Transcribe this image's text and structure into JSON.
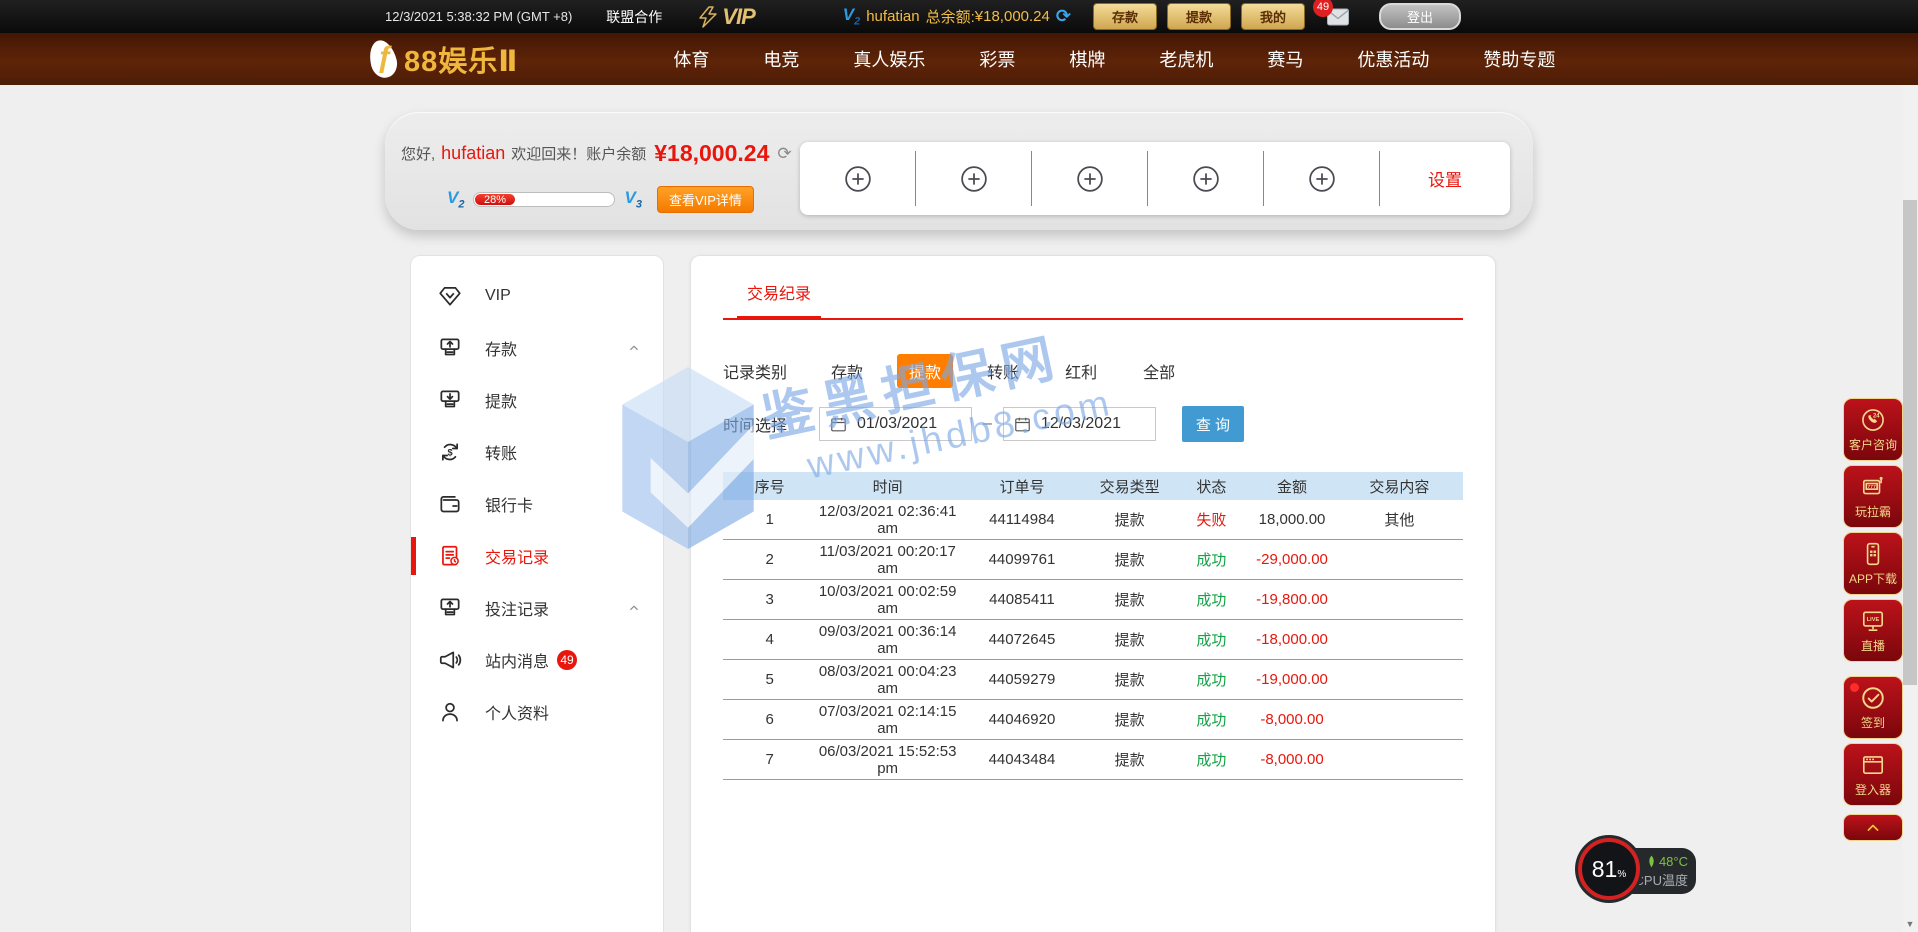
{
  "topbar": {
    "datetime": "12/3/2021 5:38:32 PM (GMT +8)",
    "alliance_link": "联盟合作",
    "vip_logo": "VIP",
    "vip_level": "V",
    "vip_level_sub": "2",
    "username": "hufatian",
    "balance_label": "总余额:",
    "balance": "¥18,000.24",
    "buttons": {
      "deposit": "存款",
      "withdraw": "提款",
      "mine": "我的",
      "logout": "登出"
    },
    "message_count": "49"
  },
  "nav": {
    "logo_f": "ƒ",
    "logo_text": "88娱乐Ⅱ",
    "items": [
      "体育",
      "电竞",
      "真人娱乐",
      "彩票",
      "棋牌",
      "老虎机",
      "赛马",
      "优惠活动",
      "赞助专题"
    ]
  },
  "banner": {
    "greeting_prefix": "您好,",
    "username": "hufatian",
    "greeting_mid": "欢迎回来！账户余额",
    "balance": "¥18,000.24",
    "vip_current": "V",
    "vip_current_sub": "2",
    "vip_next": "V",
    "vip_next_sub": "3",
    "progress": "28%",
    "vip_detail_button": "查看VIP详情",
    "settings": "设置",
    "quick_slots": 5
  },
  "sidebar": {
    "items": [
      {
        "label": "VIP",
        "icon": "vip-icon"
      },
      {
        "label": "存款",
        "icon": "deposit-icon",
        "chevron": true
      },
      {
        "label": "提款",
        "icon": "withdraw-icon"
      },
      {
        "label": "转账",
        "icon": "transfer-icon"
      },
      {
        "label": "银行卡",
        "icon": "bankcard-icon"
      },
      {
        "label": "交易记录",
        "icon": "records-icon",
        "active": true
      },
      {
        "label": "投注记录",
        "icon": "bets-icon",
        "chevron": true
      },
      {
        "label": "站内消息",
        "icon": "messages-icon",
        "badge": "49"
      },
      {
        "label": "个人资料",
        "icon": "profile-icon"
      }
    ]
  },
  "main": {
    "tab": "交易纪录",
    "filter_label": "记录类别",
    "filters": [
      {
        "label": "存款"
      },
      {
        "label": "提款",
        "active": true
      },
      {
        "label": "转账"
      },
      {
        "label": "红利"
      },
      {
        "label": "全部"
      }
    ],
    "date_label": "时间选择",
    "date_from": "01/03/2021",
    "date_separator": "–",
    "date_to": "12/03/2021",
    "search_button": "查 询",
    "table": {
      "headers": [
        "序号",
        "时间",
        "订单号",
        "交易类型",
        "状态",
        "金额",
        "交易内容"
      ],
      "rows": [
        {
          "no": "1",
          "time": "12/03/2021 02:36:41 am",
          "order": "44114984",
          "type": "提款",
          "status": "失败",
          "status_kind": "fail",
          "amount": "18,000.00",
          "amount_kind": "plain",
          "content": "其他"
        },
        {
          "no": "2",
          "time": "11/03/2021 00:20:17 am",
          "order": "44099761",
          "type": "提款",
          "status": "成功",
          "status_kind": "success",
          "amount": "-29,000.00",
          "amount_kind": "negative",
          "content": ""
        },
        {
          "no": "3",
          "time": "10/03/2021 00:02:59 am",
          "order": "44085411",
          "type": "提款",
          "status": "成功",
          "status_kind": "success",
          "amount": "-19,800.00",
          "amount_kind": "negative",
          "content": ""
        },
        {
          "no": "4",
          "time": "09/03/2021 00:36:14 am",
          "order": "44072645",
          "type": "提款",
          "status": "成功",
          "status_kind": "success",
          "amount": "-18,000.00",
          "amount_kind": "negative",
          "content": ""
        },
        {
          "no": "5",
          "time": "08/03/2021 00:04:23 am",
          "order": "44059279",
          "type": "提款",
          "status": "成功",
          "status_kind": "success",
          "amount": "-19,000.00",
          "amount_kind": "negative",
          "content": ""
        },
        {
          "no": "6",
          "time": "07/03/2021 02:14:15 am",
          "order": "44046920",
          "type": "提款",
          "status": "成功",
          "status_kind": "success",
          "amount": "-8,000.00",
          "amount_kind": "negative",
          "content": ""
        },
        {
          "no": "7",
          "time": "06/03/2021 15:52:53 pm",
          "order": "44043484",
          "type": "提款",
          "status": "成功",
          "status_kind": "success",
          "amount": "-8,000.00",
          "amount_kind": "negative",
          "content": ""
        }
      ]
    }
  },
  "watermark": {
    "line1": "鉴黑担保网",
    "line2": "www.jhdb8.com"
  },
  "floating": {
    "items": [
      {
        "label": "客户咨询",
        "icon": "customer-service-icon"
      },
      {
        "label": "玩拉霸",
        "icon": "slot-machine-icon"
      },
      {
        "label": "APP下载",
        "icon": "app-download-icon"
      },
      {
        "label": "直播",
        "icon": "live-stream-icon"
      },
      {
        "label": "签到",
        "icon": "checkin-icon",
        "dot": true,
        "gap_before": true
      },
      {
        "label": "登入器",
        "icon": "launcher-icon"
      }
    ]
  },
  "cpu": {
    "percent": "81",
    "unit": "%",
    "temperature": "48°C",
    "label": "CPU温度"
  },
  "colors": {
    "accent_red": "#e8160c",
    "accent_orange": "#ff7e00",
    "accent_blue": "#419bd2",
    "success_green": "#12a344",
    "gold": "#f0b73f",
    "table_header_bg": "#cfe5f5"
  }
}
